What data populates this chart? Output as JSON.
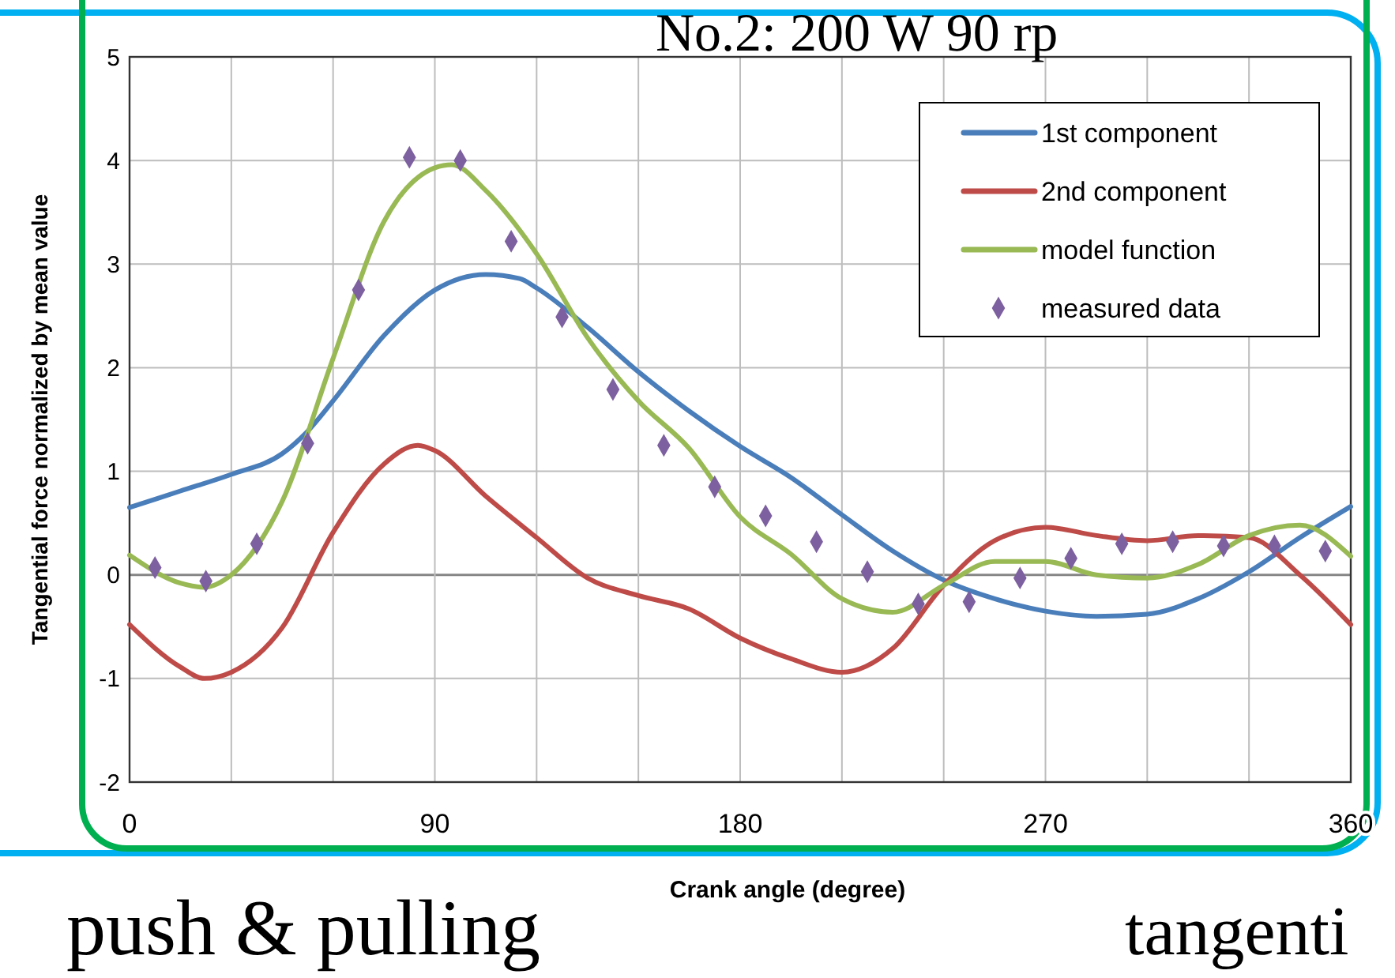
{
  "chart_data": {
    "type": "line",
    "xlabel": "Crank angle (degree)",
    "ylabel": "Tangential force normalized by mean value",
    "annotations": [
      "No.2: 200 W 90 rp",
      "push & pulling",
      "tangenti"
    ],
    "xlim": [
      0,
      360
    ],
    "xticks": [
      0,
      {
        "value": 30,
        "label": null
      },
      {
        "value": 60,
        "label": null
      },
      90,
      {
        "value": 120,
        "label": null
      },
      {
        "value": 150,
        "label": null
      },
      180,
      {
        "value": 210,
        "label": null
      },
      {
        "value": 240,
        "label": null
      },
      270,
      {
        "value": 300,
        "label": null
      },
      {
        "value": 330,
        "label": null
      },
      360
    ],
    "ylim": [
      -2,
      5
    ],
    "yticks": [
      -2,
      -1,
      0,
      1,
      2,
      3,
      4,
      5
    ],
    "grid": true,
    "legend": "top right",
    "series": [
      {
        "name": "1st component",
        "color": "#4a7ebb",
        "x": [
          0,
          15,
          30,
          45,
          52,
          60,
          75,
          90,
          105,
          115,
          120,
          135,
          150,
          165,
          180,
          195,
          210,
          225,
          240,
          255,
          270,
          285,
          300,
          315,
          330,
          345,
          360
        ],
        "values": [
          0.65,
          0.81,
          0.97,
          1.17,
          1.37,
          1.68,
          2.31,
          2.75,
          2.9,
          2.86,
          2.77,
          2.39,
          1.96,
          1.58,
          1.24,
          0.94,
          0.58,
          0.23,
          -0.05,
          -0.23,
          -0.35,
          -0.4,
          -0.38,
          -0.23,
          0.03,
          0.36,
          0.66
        ]
      },
      {
        "name": "2nd component",
        "color": "#be4b48",
        "x": [
          0,
          15,
          22,
          30,
          45,
          60,
          75,
          85,
          90,
          105,
          120,
          135,
          150,
          165,
          180,
          195,
          210,
          225,
          240,
          255,
          270,
          285,
          300,
          315,
          330,
          345,
          360
        ],
        "values": [
          -0.48,
          -0.89,
          -1.0,
          -0.94,
          -0.51,
          0.41,
          1.07,
          1.25,
          1.2,
          0.76,
          0.36,
          -0.03,
          -0.2,
          -0.33,
          -0.61,
          -0.81,
          -0.94,
          -0.71,
          -0.1,
          0.33,
          0.46,
          0.38,
          0.33,
          0.38,
          0.36,
          0.0,
          -0.48
        ]
      },
      {
        "name": "model function",
        "color": "#98b954",
        "x": [
          0,
          15,
          22,
          30,
          45,
          60,
          75,
          90,
          95,
          105,
          120,
          135,
          150,
          165,
          180,
          195,
          210,
          225,
          240,
          255,
          270,
          285,
          300,
          315,
          330,
          345,
          360
        ],
        "values": [
          0.19,
          -0.08,
          -0.12,
          0.0,
          0.71,
          2.09,
          3.41,
          3.93,
          3.96,
          3.71,
          3.1,
          2.29,
          1.68,
          1.22,
          0.56,
          0.2,
          -0.23,
          -0.36,
          -0.1,
          0.13,
          0.13,
          0.0,
          -0.03,
          0.1,
          0.38,
          0.48,
          0.18
        ]
      },
      {
        "name": "measured data",
        "type": "scatter",
        "marker": "diamond",
        "color": "#7d60a0",
        "x": [
          7.5,
          22.5,
          37.5,
          52.5,
          67.5,
          82.5,
          97.5,
          112.5,
          127.5,
          142.5,
          157.5,
          172.5,
          187.5,
          202.5,
          217.5,
          232.5,
          247.5,
          262.5,
          277.5,
          292.5,
          307.5,
          322.5,
          337.5,
          352.5
        ],
        "values": [
          0.07,
          -0.06,
          0.3,
          1.27,
          2.75,
          4.03,
          4.0,
          3.22,
          2.49,
          1.79,
          1.25,
          0.85,
          0.57,
          0.32,
          0.03,
          -0.28,
          -0.26,
          -0.03,
          0.16,
          0.3,
          0.32,
          0.28,
          0.28,
          0.23
        ]
      }
    ]
  }
}
